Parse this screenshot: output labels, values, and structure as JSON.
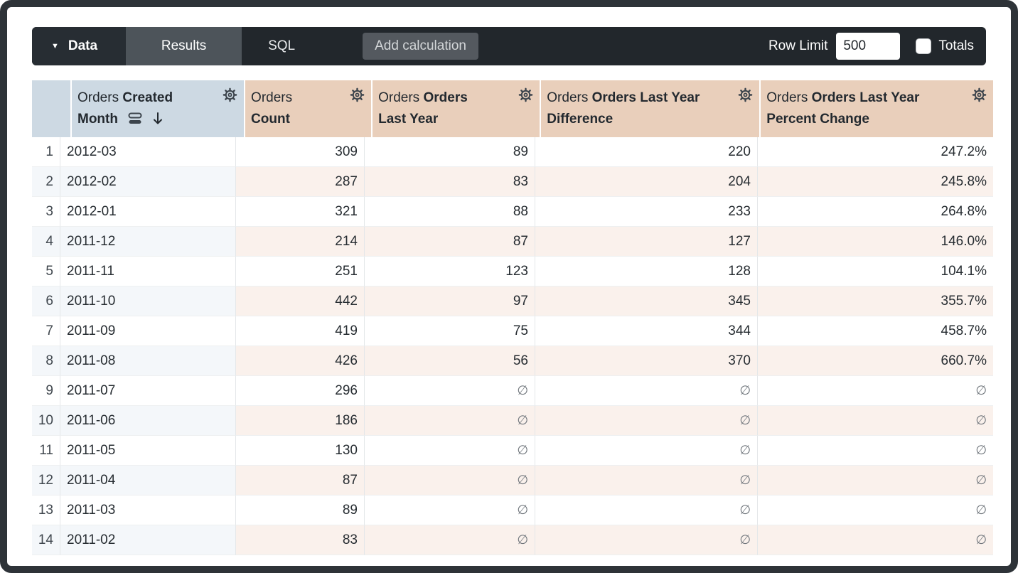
{
  "toolbar": {
    "data_label": "Data",
    "tabs": [
      {
        "label": "Results",
        "active": true
      },
      {
        "label": "SQL",
        "active": false
      }
    ],
    "add_calculation_label": "Add calculation",
    "row_limit_label": "Row Limit",
    "row_limit_value": "500",
    "totals_label": "Totals",
    "totals_checked": false
  },
  "table": {
    "null_symbol": "∅",
    "columns": [
      {
        "prefix": "Orders",
        "name": "Created Month",
        "type": "dimension",
        "sorted": true,
        "sort_direction": "desc"
      },
      {
        "prefix": "Orders",
        "name": "Count",
        "type": "measure",
        "sorted": false
      },
      {
        "prefix": "Orders",
        "name": "Orders Last Year",
        "type": "measure",
        "sorted": false
      },
      {
        "prefix": "Orders",
        "name": "Orders Last Year Difference",
        "type": "measure",
        "sorted": false
      },
      {
        "prefix": "Orders",
        "name": "Orders Last Year Percent Change",
        "type": "measure",
        "sorted": false
      }
    ],
    "rows": [
      {
        "index": "1",
        "cells": [
          "2012-03",
          "309",
          "89",
          "220",
          "247.2%"
        ]
      },
      {
        "index": "2",
        "cells": [
          "2012-02",
          "287",
          "83",
          "204",
          "245.8%"
        ]
      },
      {
        "index": "3",
        "cells": [
          "2012-01",
          "321",
          "88",
          "233",
          "264.8%"
        ]
      },
      {
        "index": "4",
        "cells": [
          "2011-12",
          "214",
          "87",
          "127",
          "146.0%"
        ]
      },
      {
        "index": "5",
        "cells": [
          "2011-11",
          "251",
          "123",
          "128",
          "104.1%"
        ]
      },
      {
        "index": "6",
        "cells": [
          "2011-10",
          "442",
          "97",
          "345",
          "355.7%"
        ]
      },
      {
        "index": "7",
        "cells": [
          "2011-09",
          "419",
          "75",
          "344",
          "458.7%"
        ]
      },
      {
        "index": "8",
        "cells": [
          "2011-08",
          "426",
          "56",
          "370",
          "660.7%"
        ]
      },
      {
        "index": "9",
        "cells": [
          "2011-07",
          "296",
          "∅",
          "∅",
          "∅"
        ]
      },
      {
        "index": "10",
        "cells": [
          "2011-06",
          "186",
          "∅",
          "∅",
          "∅"
        ]
      },
      {
        "index": "11",
        "cells": [
          "2011-05",
          "130",
          "∅",
          "∅",
          "∅"
        ]
      },
      {
        "index": "12",
        "cells": [
          "2011-04",
          "87",
          "∅",
          "∅",
          "∅"
        ]
      },
      {
        "index": "13",
        "cells": [
          "2011-03",
          "89",
          "∅",
          "∅",
          "∅"
        ]
      },
      {
        "index": "14",
        "cells": [
          "2011-02",
          "83",
          "∅",
          "∅",
          "∅"
        ]
      }
    ]
  },
  "colors": {
    "frame": "#2e3338",
    "toolbar_bg": "#22272c",
    "active_tab_bg": "#4d545a",
    "dimension_header_bg": "#cdd9e3",
    "measure_header_bg": "#e9cfbb",
    "even_row_dimension_tint": "#f4f7fa",
    "even_row_measure_tint": "#faf1ec"
  }
}
